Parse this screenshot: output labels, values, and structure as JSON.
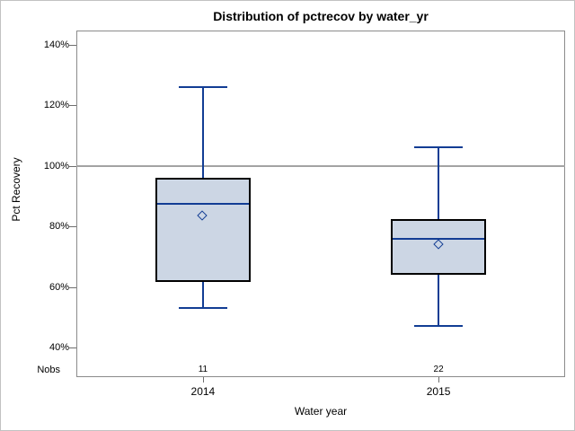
{
  "chart_data": {
    "type": "boxplot",
    "title": "Distribution of pctrecov by water_yr",
    "xlabel": "Water year",
    "ylabel": "Pct Recovery",
    "categories": [
      "2014",
      "2015"
    ],
    "y_ticks": [
      "40%",
      "60%",
      "80%",
      "100%",
      "120%",
      "140%"
    ],
    "y_tick_values": [
      40,
      60,
      80,
      100,
      120,
      140
    ],
    "ylim": [
      30,
      145
    ],
    "reference_line": 100,
    "grid": "horizontal reference line at 100% only",
    "legend": "none",
    "nobs_label": "Nobs",
    "nobs": [
      "11",
      "22"
    ],
    "series": [
      {
        "category": "2014",
        "n": 11,
        "whisker_low": 53,
        "q1": 61.5,
        "median": 87.5,
        "q3": 96,
        "whisker_high": 126,
        "mean": 83.5
      },
      {
        "category": "2015",
        "n": 22,
        "whisker_low": 47,
        "q1": 64,
        "median": 76,
        "q3": 82.5,
        "whisker_high": 106,
        "mean": 74
      }
    ]
  },
  "colors": {
    "box_fill": "#ccd6e4",
    "box_border": "#000000",
    "box_lines_blue": "#123d94",
    "reference_line": "#a3a3a3",
    "frame": "#8b8b8b",
    "tick_mark": "#6e6e6e",
    "text": "#000000",
    "outer_border": "#c2c2c2"
  }
}
